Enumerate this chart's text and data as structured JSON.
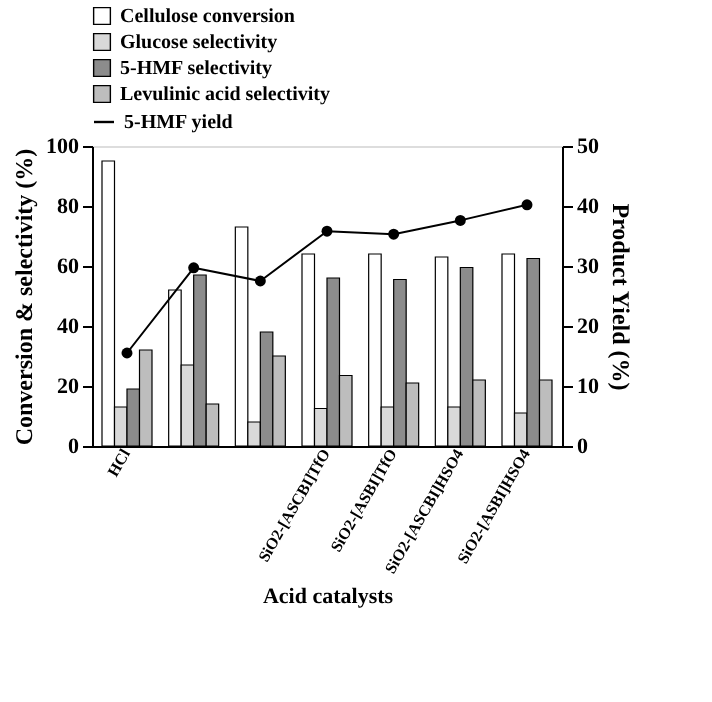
{
  "chart_data": {
    "type": "bar",
    "xlabel": "Acid catalysts",
    "ylabel": "Conversion & selectivity (%)",
    "y2label": "Product Yield (%)",
    "categories": [
      "HCl",
      null,
      null,
      "SiO2-[ASCBI]TfO",
      "SiO2-[ASBI]TfO",
      "SiO2-[ASCBI]HSO4",
      "SiO2-[ASBI]HSO4"
    ],
    "series": [
      {
        "name": "Cellulose conversion",
        "color": "#ffffff",
        "values": [
          95,
          52,
          73,
          64,
          64,
          63,
          64
        ]
      },
      {
        "name": "Glucose selectivity",
        "color": "#d9d9d9",
        "values": [
          13,
          27,
          8,
          12.5,
          13,
          13,
          11
        ]
      },
      {
        "name": "5-HMF selectivity",
        "color": "#8c8c8c",
        "values": [
          19,
          57,
          38,
          56,
          55.5,
          59.5,
          62.5
        ]
      },
      {
        "name": "Levulinic acid selectivity",
        "color": "#bdbdbd",
        "values": [
          32,
          14,
          30,
          23.5,
          21,
          22,
          22
        ]
      },
      {
        "name": "5-HMF yield",
        "type": "line",
        "axis": "y2",
        "color": "#000000",
        "marker": "circle",
        "values": [
          15.5,
          29.7,
          27.5,
          35.8,
          35.3,
          37.6,
          40.2
        ]
      }
    ],
    "ylim": [
      0,
      100
    ],
    "yticks": [
      0,
      20,
      40,
      60,
      80,
      100
    ],
    "y2lim": [
      0,
      50
    ],
    "y2ticks": [
      0,
      10,
      20,
      30,
      40,
      50
    ],
    "grid": false,
    "legend": "top left"
  }
}
